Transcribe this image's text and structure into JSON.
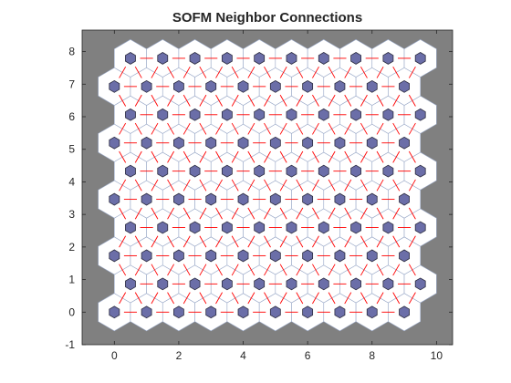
{
  "chart_data": {
    "type": "scatter",
    "title": "SOFM Neighbor Connections",
    "xlabel": "",
    "ylabel": "",
    "xlim": [
      -1,
      10.5
    ],
    "ylim": [
      -1,
      8.66
    ],
    "x_ticks": [
      0,
      2,
      4,
      6,
      8,
      10
    ],
    "y_ticks": [
      -1,
      0,
      1,
      2,
      3,
      4,
      5,
      6,
      7,
      8
    ],
    "grid": false,
    "legend": "none",
    "topology": "hexagonal",
    "grid_dims": [
      10,
      10
    ],
    "neuron_positions": {
      "rows": [
        {
          "y": 0,
          "x": [
            0,
            1,
            2,
            3,
            4,
            5,
            6,
            7,
            8,
            9
          ]
        },
        {
          "y": 0.866,
          "x": [
            0.5,
            1.5,
            2.5,
            3.5,
            4.5,
            5.5,
            6.5,
            7.5,
            8.5,
            9.5
          ]
        },
        {
          "y": 1.732,
          "x": [
            0,
            1,
            2,
            3,
            4,
            5,
            6,
            7,
            8,
            9
          ]
        },
        {
          "y": 2.598,
          "x": [
            0.5,
            1.5,
            2.5,
            3.5,
            4.5,
            5.5,
            6.5,
            7.5,
            8.5,
            9.5
          ]
        },
        {
          "y": 3.464,
          "x": [
            0,
            1,
            2,
            3,
            4,
            5,
            6,
            7,
            8,
            9
          ]
        },
        {
          "y": 4.33,
          "x": [
            0.5,
            1.5,
            2.5,
            3.5,
            4.5,
            5.5,
            6.5,
            7.5,
            8.5,
            9.5
          ]
        },
        {
          "y": 5.196,
          "x": [
            0,
            1,
            2,
            3,
            4,
            5,
            6,
            7,
            8,
            9
          ]
        },
        {
          "y": 6.062,
          "x": [
            0.5,
            1.5,
            2.5,
            3.5,
            4.5,
            5.5,
            6.5,
            7.5,
            8.5,
            9.5
          ]
        },
        {
          "y": 6.928,
          "x": [
            0,
            1,
            2,
            3,
            4,
            5,
            6,
            7,
            8,
            9
          ]
        },
        {
          "y": 7.794,
          "x": [
            0.5,
            1.5,
            2.5,
            3.5,
            4.5,
            5.5,
            6.5,
            7.5,
            8.5,
            9.5
          ]
        }
      ]
    },
    "connections": "hexagonal-nearest-neighbors",
    "colors": {
      "background": "#808080",
      "tile_fill": "#ffffff",
      "tile_edge": "#9aa9c8",
      "neuron_fill": "#6b6ea8",
      "neuron_edge": "#2c2c40",
      "connection": "#ff0000",
      "axis": "#262626"
    }
  }
}
